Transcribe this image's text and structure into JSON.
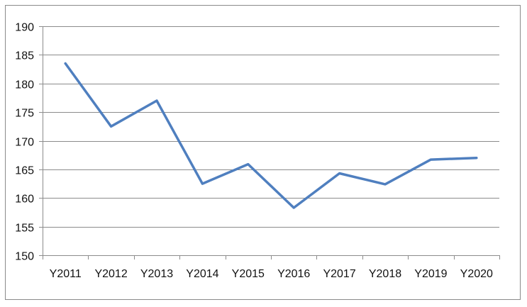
{
  "chart_data": {
    "type": "line",
    "title": "",
    "xlabel": "",
    "ylabel": "",
    "categories": [
      "Y2011",
      "Y2012",
      "Y2013",
      "Y2014",
      "Y2015",
      "Y2016",
      "Y2017",
      "Y2018",
      "Y2019",
      "Y2020"
    ],
    "series": [
      {
        "values": [
          183.5,
          172.5,
          177.0,
          162.5,
          165.9,
          158.3,
          164.3,
          162.4,
          166.7,
          167.0
        ],
        "color": "#4f7fbf"
      }
    ],
    "ylim": [
      150,
      190
    ],
    "yticks": [
      150,
      155,
      160,
      165,
      170,
      175,
      180,
      185,
      190
    ],
    "grid": true,
    "legend": "none"
  }
}
